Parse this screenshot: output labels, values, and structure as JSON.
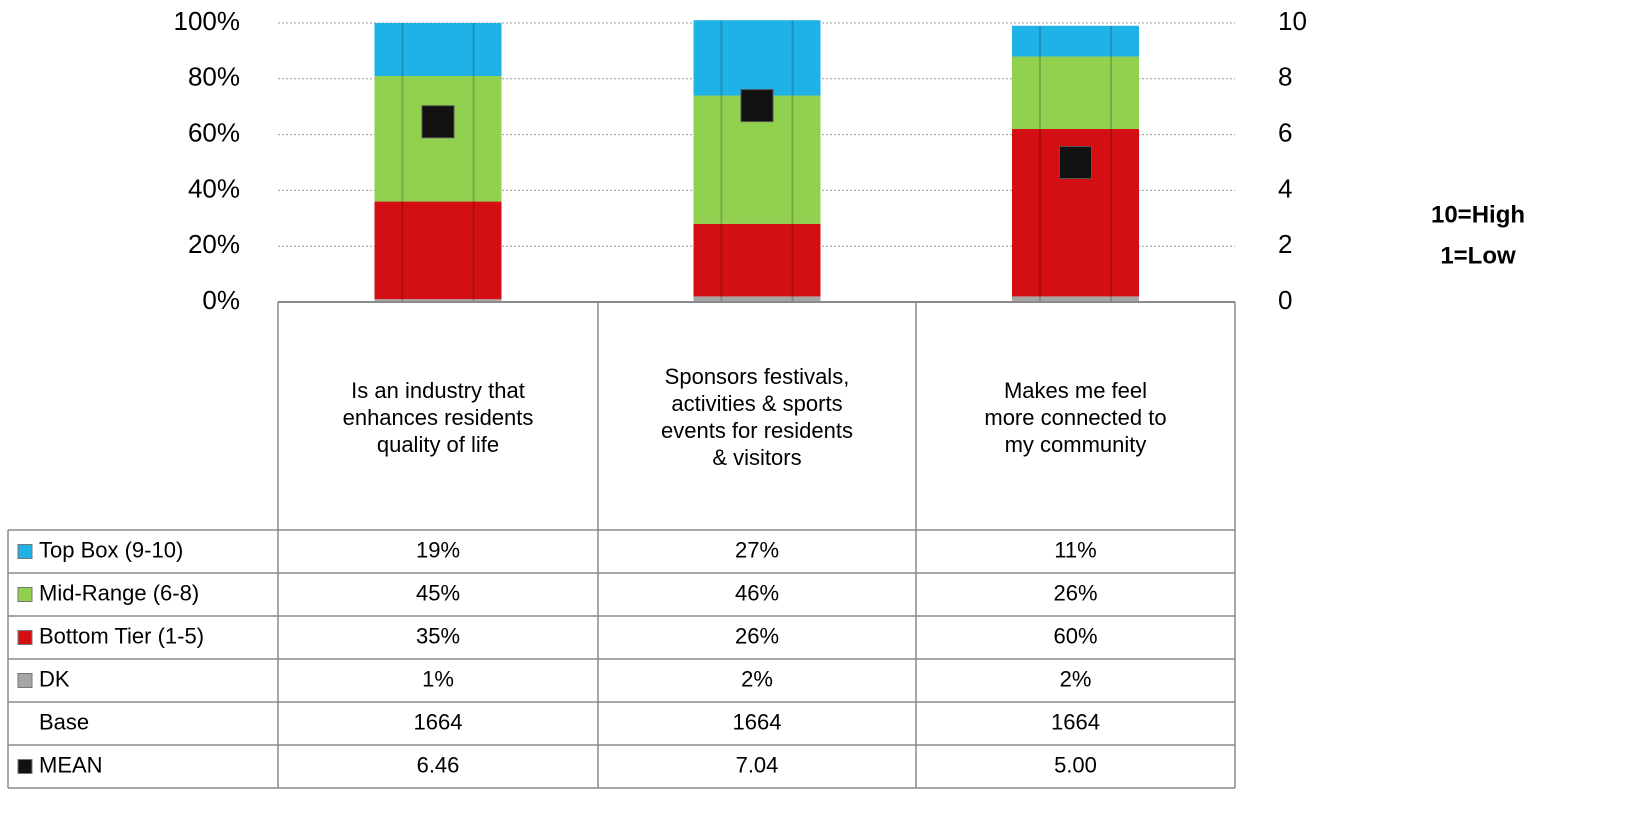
{
  "chart_data": {
    "type": "bar",
    "stacked": true,
    "categories": [
      "Is an industry that enhances residents quality of life",
      "Sponsors festivals, activities & sports events for residents & visitors",
      "Makes me feel more connected to my community"
    ],
    "series": [
      {
        "name": "DK",
        "color": "#a6a6a6",
        "values": [
          1,
          2,
          2
        ],
        "value_labels": [
          "1%",
          "2%",
          "2%"
        ]
      },
      {
        "name": "Bottom Tier (1-5)",
        "color": "#d40f14",
        "values": [
          35,
          26,
          60
        ],
        "value_labels": [
          "35%",
          "26%",
          "60%"
        ]
      },
      {
        "name": "Mid-Range (6-8)",
        "color": "#92d050",
        "values": [
          45,
          46,
          26
        ],
        "value_labels": [
          "45%",
          "46%",
          "26%"
        ]
      },
      {
        "name": "Top Box (9-10)",
        "color": "#1fb2e6",
        "values": [
          19,
          27,
          11
        ],
        "value_labels": [
          "19%",
          "27%",
          "11%"
        ]
      },
      {
        "name": "MEAN",
        "color": "#111111",
        "axis": "y2",
        "values": [
          6.46,
          7.04,
          5
        ],
        "value_labels": [
          "6.46",
          "7.04",
          "5.00"
        ]
      }
    ],
    "base": {
      "name": "Base",
      "values": [
        1664,
        1664,
        1664
      ]
    },
    "ylim": [
      0,
      100
    ],
    "yticks": [
      {
        "value": 0,
        "label": "0%"
      },
      {
        "value": 20,
        "label": "20%"
      },
      {
        "value": 40,
        "label": "40%"
      },
      {
        "value": 60,
        "label": "60%"
      },
      {
        "value": 80,
        "label": "80%"
      },
      {
        "value": 100,
        "label": "100%"
      }
    ],
    "y2lim": [
      0,
      10
    ],
    "y2ticks": [
      0,
      2,
      4,
      6,
      8,
      10
    ],
    "grid": true,
    "annotations": [
      "10=High",
      "1=Low"
    ]
  }
}
